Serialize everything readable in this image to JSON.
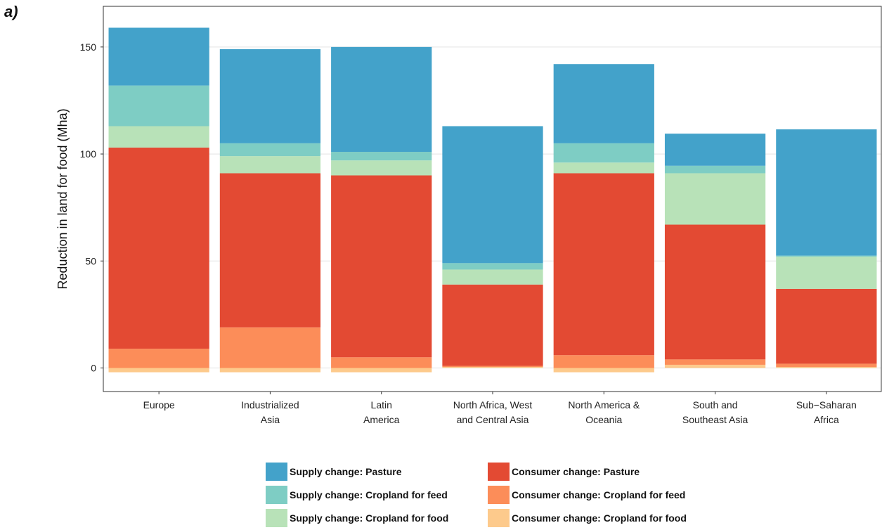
{
  "panel_label": "a)",
  "chart_data": {
    "type": "bar",
    "stacked": true,
    "ylabel": "Reduction in land for food (Mha)",
    "xlabel": "",
    "ylim": [
      -11,
      169
    ],
    "yticks": [
      0,
      50,
      100,
      150
    ],
    "grid": true,
    "legend_position": "bottom",
    "categories": [
      [
        "Europe"
      ],
      [
        "Industrialized",
        "Asia"
      ],
      [
        "Latin",
        "America"
      ],
      [
        "North Africa, West",
        "and Central Asia"
      ],
      [
        "North America &",
        "Oceania"
      ],
      [
        "South and",
        "Southeast Asia"
      ],
      [
        "Sub−Saharan",
        "Africa"
      ]
    ],
    "below_zero": [
      -2,
      -2,
      -2,
      0,
      -2,
      0,
      0
    ],
    "series": [
      {
        "name": "Consumer change: Cropland for food",
        "color": "#FDCA8C",
        "values": [
          2,
          2,
          2,
          0.5,
          2,
          1.5,
          0.5
        ]
      },
      {
        "name": "Consumer change: Cropland for feed",
        "color": "#FC8D59",
        "values": [
          9,
          19,
          5,
          0.5,
          6,
          2.5,
          1.5
        ]
      },
      {
        "name": "Consumer change: Pasture",
        "color": "#E34A33",
        "values": [
          94,
          72,
          85,
          38,
          85,
          63,
          35
        ]
      },
      {
        "name": "Supply change: Cropland for food",
        "color": "#B8E2B8",
        "values": [
          10,
          8,
          7,
          7,
          5,
          24,
          15
        ]
      },
      {
        "name": "Supply change: Cropland for feed",
        "color": "#7ECDC4",
        "values": [
          19,
          6,
          4,
          3,
          9,
          3.5,
          0.5
        ]
      },
      {
        "name": "Supply change: Pasture",
        "color": "#43A2CA",
        "values": [
          27,
          44,
          49,
          64,
          37,
          15,
          59
        ]
      }
    ]
  },
  "legend": [
    {
      "label": "Supply change: Pasture",
      "color": "#43A2CA"
    },
    {
      "label": "Supply change: Cropland for feed",
      "color": "#7ECDC4"
    },
    {
      "label": "Supply change: Cropland for food",
      "color": "#B8E2B8"
    },
    {
      "label": "Consumer change: Pasture",
      "color": "#E34A33"
    },
    {
      "label": "Consumer change: Cropland for feed",
      "color": "#FC8D59"
    },
    {
      "label": "Consumer change: Cropland for food",
      "color": "#FDCA8C"
    }
  ]
}
